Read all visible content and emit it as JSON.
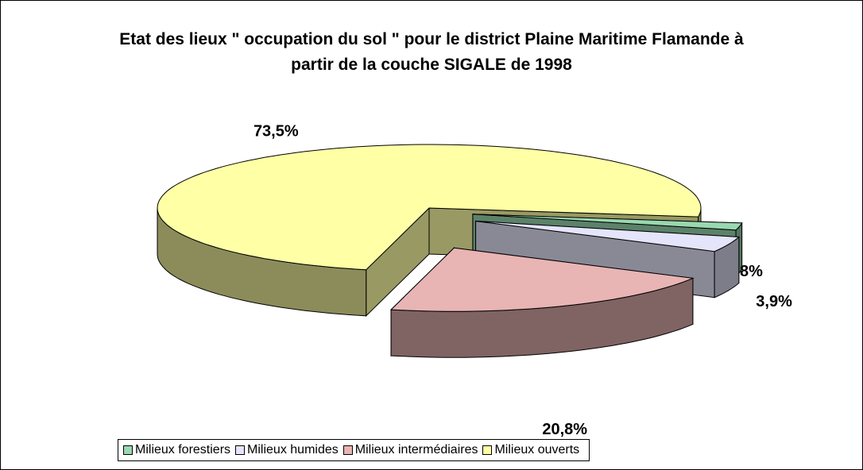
{
  "chart_data": {
    "type": "pie",
    "title": "Etat des lieux \" occupation du sol \" pour le district Plaine Maritime Flamande à partir de la couche SIGALE de 1998",
    "categories": [
      "Milieux forestiers",
      "Milieux humides",
      "Milieux intermédiaires",
      "Milieux ouverts"
    ],
    "values": [
      1.8,
      3.9,
      20.8,
      73.5
    ],
    "value_labels": [
      "1,8%",
      "3,9%",
      "20,8%",
      "73,5%"
    ],
    "colors": [
      "#99d8b0",
      "#e4e4fa",
      "#e8b4b4",
      "#ffffa6"
    ],
    "legend": "bottom"
  }
}
